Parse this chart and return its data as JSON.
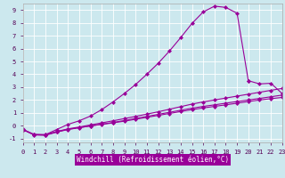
{
  "xlabel": "Windchill (Refroidissement éolien,°C)",
  "bg_color": "#cce8ee",
  "grid_color": "#b8d8e0",
  "line_color": "#990099",
  "x_ticks": [
    0,
    1,
    2,
    3,
    4,
    5,
    6,
    7,
    8,
    9,
    10,
    11,
    12,
    13,
    14,
    15,
    16,
    17,
    18,
    19,
    20,
    21,
    22,
    23
  ],
  "y_ticks": [
    -1,
    0,
    1,
    2,
    3,
    4,
    5,
    6,
    7,
    8,
    9
  ],
  "xlim": [
    0,
    23
  ],
  "ylim": [
    -1.3,
    9.5
  ],
  "series": [
    {
      "x": [
        0,
        1,
        2,
        3,
        4,
        5,
        6,
        7,
        8,
        9,
        10,
        11,
        12,
        13,
        14,
        15,
        16,
        17,
        18,
        19,
        20,
        21,
        22,
        23
      ],
      "y": [
        -0.3,
        -0.7,
        -0.72,
        -0.48,
        -0.28,
        -0.15,
        -0.02,
        0.1,
        0.22,
        0.35,
        0.5,
        0.65,
        0.8,
        0.95,
        1.1,
        1.25,
        1.38,
        1.5,
        1.62,
        1.75,
        1.88,
        2.0,
        2.1,
        2.2
      ],
      "marker": "D",
      "markersize": 2,
      "linewidth": 0.8
    },
    {
      "x": [
        0,
        1,
        2,
        3,
        4,
        5,
        6,
        7,
        8,
        9,
        10,
        11,
        12,
        13,
        14,
        15,
        16,
        17,
        18,
        19,
        20,
        21,
        22,
        23
      ],
      "y": [
        -0.3,
        -0.72,
        -0.75,
        -0.5,
        -0.3,
        -0.16,
        -0.02,
        0.12,
        0.25,
        0.4,
        0.56,
        0.72,
        0.88,
        1.04,
        1.2,
        1.36,
        1.5,
        1.62,
        1.75,
        1.88,
        2.0,
        2.12,
        2.25,
        2.38
      ],
      "marker": "D",
      "markersize": 2,
      "linewidth": 0.8
    },
    {
      "x": [
        0,
        1,
        2,
        3,
        4,
        5,
        6,
        7,
        8,
        9,
        10,
        11,
        12,
        13,
        14,
        15,
        16,
        17,
        18,
        19,
        20,
        21,
        22,
        23
      ],
      "y": [
        -0.28,
        -0.68,
        -0.7,
        -0.45,
        -0.25,
        -0.1,
        0.06,
        0.22,
        0.38,
        0.55,
        0.72,
        0.9,
        1.08,
        1.28,
        1.48,
        1.68,
        1.85,
        2.0,
        2.15,
        2.3,
        2.45,
        2.6,
        2.75,
        2.9
      ],
      "marker": "D",
      "markersize": 2,
      "linewidth": 0.8
    },
    {
      "x": [
        0,
        1,
        2,
        3,
        4,
        5,
        6,
        7,
        8,
        9,
        10,
        11,
        12,
        13,
        14,
        15,
        16,
        17,
        18,
        19,
        20
      ],
      "y": [
        -0.3,
        -0.7,
        -0.7,
        -0.3,
        0.1,
        0.38,
        0.75,
        1.25,
        1.85,
        2.5,
        3.2,
        4.0,
        4.85,
        5.8,
        6.85,
        7.95,
        8.85,
        9.3,
        9.2,
        8.75,
        3.5
      ],
      "marker": "D",
      "markersize": 2,
      "linewidth": 0.8
    },
    {
      "x": [
        20,
        21,
        22,
        23
      ],
      "y": [
        3.5,
        3.25,
        3.3,
        2.5
      ],
      "marker": "D",
      "markersize": 2,
      "linewidth": 0.8
    }
  ]
}
